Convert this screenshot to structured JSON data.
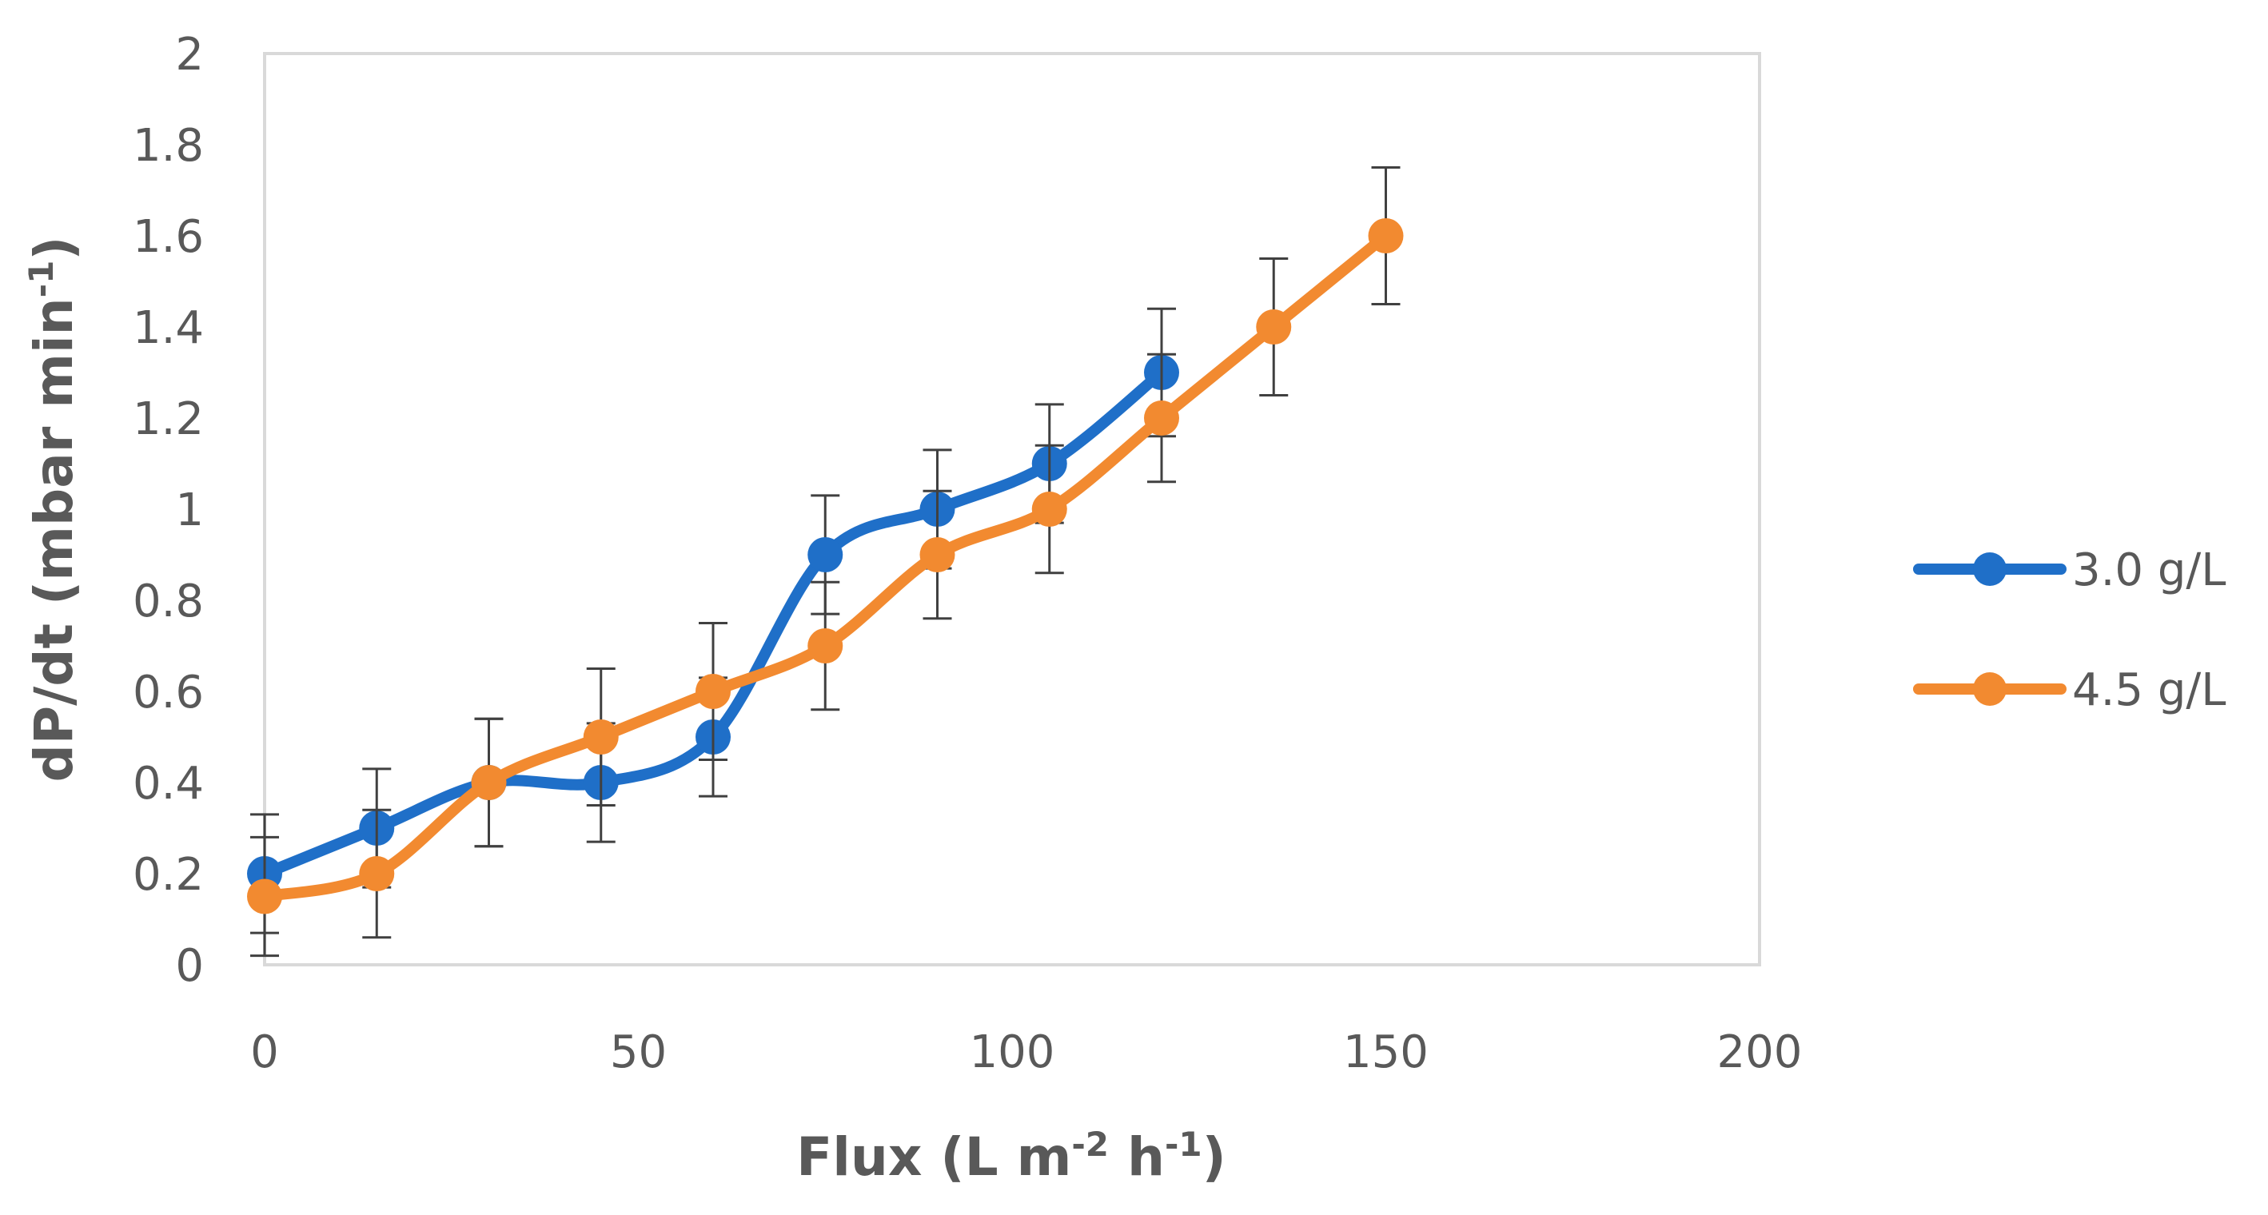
{
  "chart_data": {
    "type": "line",
    "title": "",
    "xlabel": {
      "main": "Flux (L m",
      "sup1": "-2",
      "mid": " h",
      "sup2": "-1",
      "end": ")"
    },
    "ylabel": {
      "main": "dP/dt (mbar min",
      "sup": "-1",
      "end": ")"
    },
    "xlim": [
      0,
      200
    ],
    "ylim": [
      0,
      2
    ],
    "xticks": [
      0,
      50,
      100,
      150,
      200
    ],
    "yticks": [
      0,
      0.2,
      0.4,
      0.6,
      0.8,
      1,
      1.2,
      1.4,
      1.6,
      1.8,
      2
    ],
    "xtick_labels": [
      "0",
      "50",
      "100",
      "150",
      "200"
    ],
    "ytick_labels": [
      "0",
      "0.2",
      "0.4",
      "0.6",
      "0.8",
      "1",
      "1.2",
      "1.4",
      "1.6",
      "1.8",
      "2"
    ],
    "grid": false,
    "legend_position": "right",
    "smooth": true,
    "series": [
      {
        "name": "3.0 g/L",
        "color": "#1F6FC8",
        "x": [
          0,
          15,
          30,
          45,
          60,
          75,
          90,
          105,
          120
        ],
        "y": [
          0.2,
          0.3,
          0.4,
          0.4,
          0.5,
          0.9,
          1.0,
          1.1,
          1.3
        ],
        "err": [
          0.13,
          0.13,
          0.14,
          0.13,
          0.13,
          0.13,
          0.13,
          0.13,
          0.14
        ]
      },
      {
        "name": "4.5 g/L",
        "color": "#F28A30",
        "x": [
          0,
          15,
          30,
          45,
          60,
          75,
          90,
          105,
          120,
          135,
          150
        ],
        "y": [
          0.15,
          0.2,
          0.4,
          0.5,
          0.6,
          0.7,
          0.9,
          1.0,
          1.2,
          1.4,
          1.6
        ],
        "err": [
          0.13,
          0.14,
          0.14,
          0.15,
          0.15,
          0.14,
          0.14,
          0.14,
          0.14,
          0.15,
          0.15
        ]
      }
    ]
  }
}
